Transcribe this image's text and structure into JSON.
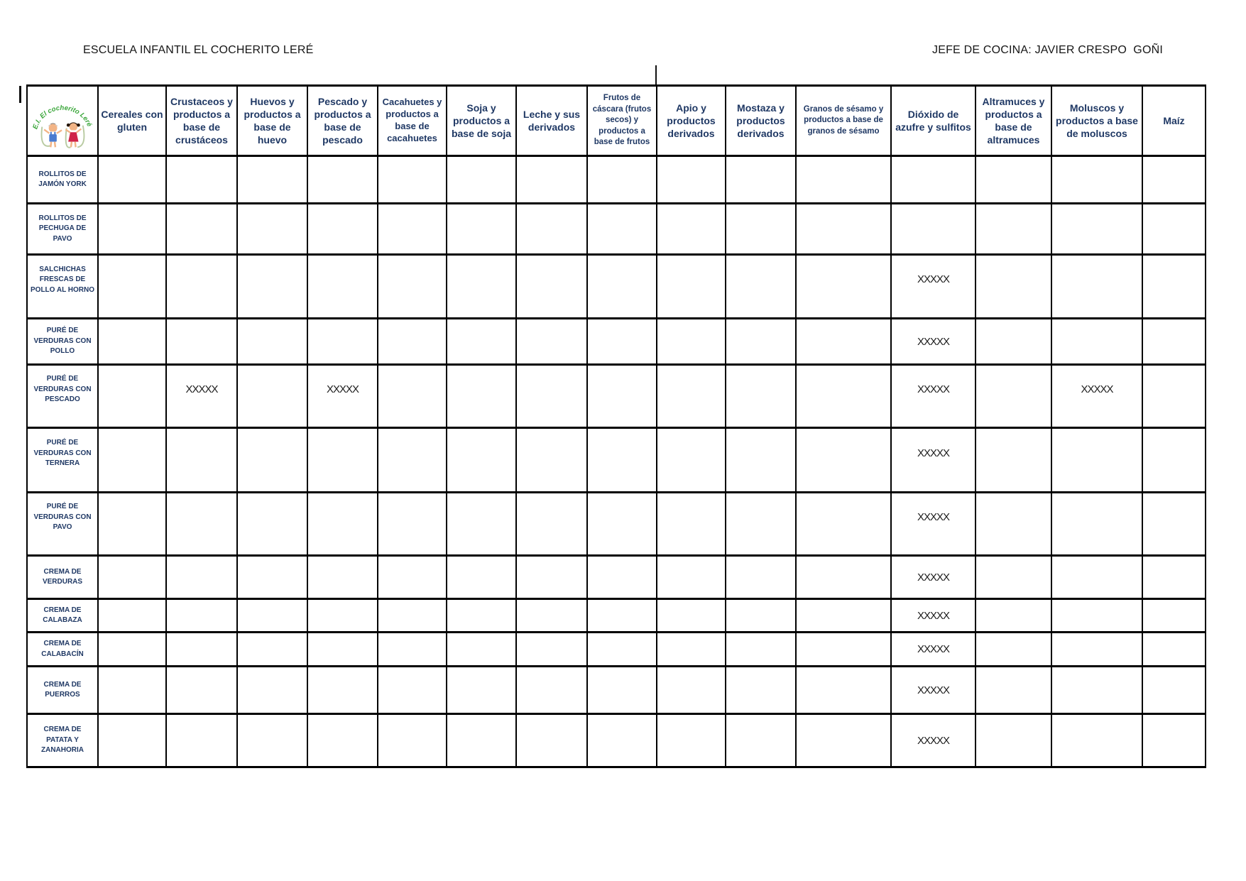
{
  "page": {
    "school_title": "ESCUELA INFANTIL EL COCHERITO LERÉ",
    "chef_title": "JEFE DE COCINA: JAVIER CRESPO  GOÑI"
  },
  "logo": {
    "arc_text": "E.I. El cocherito Leré"
  },
  "allergen_mark": "XXXXX",
  "allergens": [
    "Cereales con gluten",
    "Crustaceos y productos a base de crustáceos",
    "Huevos y productos a base de huevo",
    "Pescado y productos a base de pescado",
    "Cacahuetes y productos a base de cacahuetes",
    "Soja y productos a base de soja",
    "Leche y sus derivados",
    "Frutos de cáscara (frutos secos) y productos a base de frutos",
    "Apio y productos derivados",
    "Mostaza y productos derivados",
    "Granos de sésamo y productos a base de granos de sésamo",
    "Dióxido de azufre y sulfitos",
    "Altramuces y productos a base de altramuces",
    "Moluscos y productos a base de moluscos",
    "Maíz"
  ],
  "dishes": [
    {
      "name": "ROLLITOS DE JAMÓN YORK",
      "marks": []
    },
    {
      "name": "ROLLITOS DE PECHUGA DE PAVO",
      "marks": []
    },
    {
      "name": "SALCHICHAS FRESCAS DE POLLO AL HORNO",
      "marks": [
        11
      ]
    },
    {
      "name": "PURÉ DE VERDURAS CON POLLO",
      "marks": [
        11
      ]
    },
    {
      "name": "PURÉ DE VERDURAS CON PESCADO",
      "marks": [
        1,
        3,
        11,
        13
      ]
    },
    {
      "name": "PURÉ DE VERDURAS CON TERNERA",
      "marks": [
        11
      ]
    },
    {
      "name": "PURÉ DE VERDURAS CON PAVO",
      "marks": [
        11
      ]
    },
    {
      "name": "CREMA DE VERDURAS",
      "marks": [
        11
      ]
    },
    {
      "name": "CREMA DE CALABAZA",
      "marks": [
        11
      ]
    },
    {
      "name": "CREMA DE CALABACÍN",
      "marks": [
        11
      ]
    },
    {
      "name": "CREMA DE PUERROS",
      "marks": [
        11
      ]
    },
    {
      "name": "CREMA DE PATATA Y ZANAHORIA",
      "marks": [
        11
      ]
    }
  ],
  "colors": {
    "header_text": "#1f3864",
    "mark_text": "#1c1c1c",
    "border": "#000000",
    "logo_green": "#3aa63a",
    "logo_blue": "#4a7bd0",
    "logo_red": "#cf2348"
  }
}
